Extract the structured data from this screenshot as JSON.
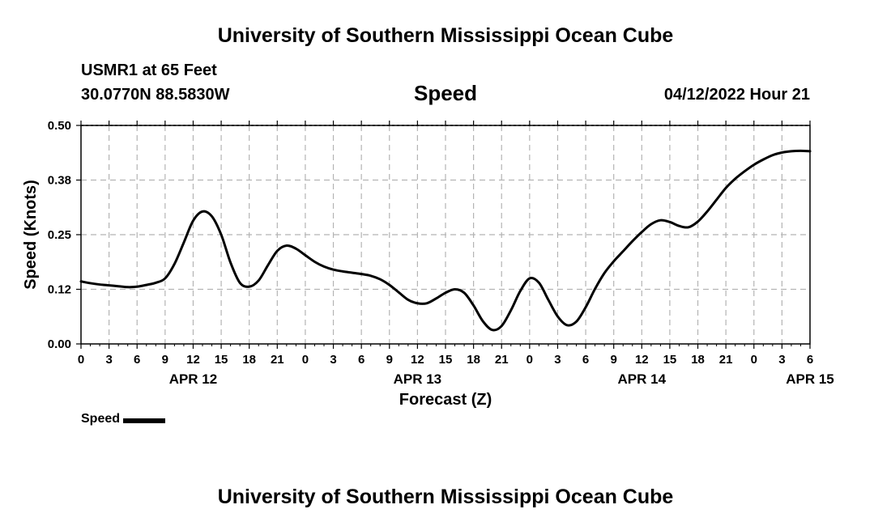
{
  "header": {
    "title_top": "University of Southern Mississippi Ocean Cube",
    "station": "USMR1 at 65 Feet",
    "coords": "30.0770N  88.5830W",
    "chart_title": "Speed",
    "timestamp": "04/12/2022 Hour 21",
    "title_bottom": "University of Southern Mississippi Ocean Cube"
  },
  "legend": {
    "label": "Speed"
  },
  "colors": {
    "line": "#000000",
    "grid": "#b4b4b4",
    "background": "#ffffff"
  },
  "chart_data": {
    "type": "line",
    "title": "Speed",
    "xlabel": "Forecast (Z)",
    "ylabel": "Speed (Knots)",
    "x_unit": "hours since 2022-04-12 00Z",
    "xlim": [
      0,
      78
    ],
    "ylim": [
      0,
      0.5
    ],
    "y_ticks": [
      0,
      0.125,
      0.25,
      0.375,
      0.5
    ],
    "y_tick_labels": [
      "0.00",
      "0.12",
      "0.25",
      "0.38",
      "0.50"
    ],
    "x_ticks": [
      0,
      3,
      6,
      9,
      12,
      15,
      18,
      21,
      24,
      27,
      30,
      33,
      36,
      39,
      42,
      45,
      48,
      51,
      54,
      57,
      60,
      63,
      66,
      69,
      72,
      75,
      78
    ],
    "x_tick_labels": [
      "0",
      "3",
      "6",
      "9",
      "12",
      "15",
      "18",
      "21",
      "0",
      "3",
      "6",
      "9",
      "12",
      "15",
      "18",
      "21",
      "0",
      "3",
      "6",
      "9",
      "12",
      "15",
      "18",
      "21",
      "0",
      "3",
      "6"
    ],
    "date_labels": [
      {
        "x": 12,
        "label": "APR 12"
      },
      {
        "x": 36,
        "label": "APR 13"
      },
      {
        "x": 60,
        "label": "APR 14"
      },
      {
        "x": 78,
        "label": "APR 15"
      }
    ],
    "grid": true,
    "series": [
      {
        "name": "Speed",
        "x": [
          0,
          1,
          2,
          3,
          4,
          5,
          6,
          7,
          8,
          9,
          10,
          11,
          12,
          13,
          14,
          15,
          16,
          17,
          18,
          19,
          20,
          21,
          22,
          23,
          24,
          25,
          26,
          27,
          28,
          29,
          30,
          31,
          32,
          33,
          34,
          35,
          36,
          37,
          38,
          39,
          40,
          41,
          42,
          43,
          44,
          45,
          46,
          47,
          48,
          49,
          50,
          51,
          52,
          53,
          54,
          55,
          56,
          57,
          58,
          59,
          60,
          61,
          62,
          63,
          64,
          65,
          66,
          67,
          68,
          69,
          70,
          71,
          72,
          73,
          74,
          75,
          76,
          77,
          78
        ],
        "values": [
          0.143,
          0.139,
          0.136,
          0.134,
          0.132,
          0.13,
          0.131,
          0.135,
          0.14,
          0.15,
          0.183,
          0.232,
          0.282,
          0.303,
          0.292,
          0.25,
          0.186,
          0.14,
          0.131,
          0.145,
          0.18,
          0.213,
          0.225,
          0.218,
          0.203,
          0.188,
          0.177,
          0.17,
          0.166,
          0.163,
          0.16,
          0.156,
          0.148,
          0.135,
          0.118,
          0.101,
          0.093,
          0.093,
          0.104,
          0.117,
          0.125,
          0.117,
          0.088,
          0.052,
          0.032,
          0.041,
          0.077,
          0.121,
          0.15,
          0.14,
          0.101,
          0.063,
          0.043,
          0.051,
          0.084,
          0.126,
          0.162,
          0.189,
          0.212,
          0.235,
          0.256,
          0.274,
          0.283,
          0.279,
          0.27,
          0.267,
          0.28,
          0.303,
          0.33,
          0.357,
          0.378,
          0.395,
          0.41,
          0.422,
          0.432,
          0.438,
          0.441,
          0.442,
          0.441
        ]
      }
    ]
  }
}
